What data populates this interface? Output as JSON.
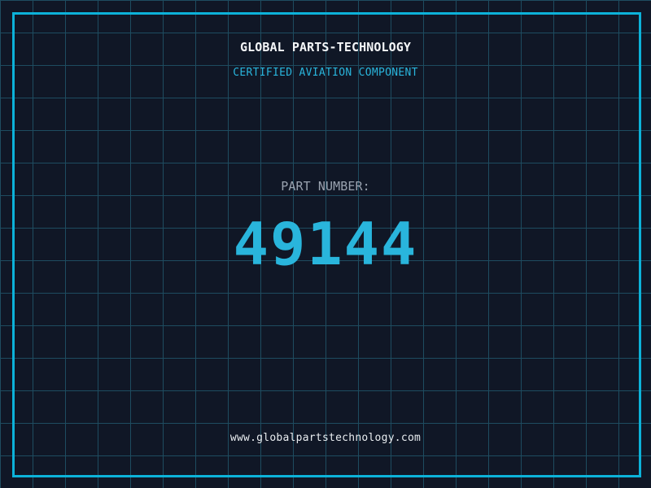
{
  "theme": {
    "background": "#101726",
    "grid_line": "#1e4c60",
    "frame": "#0cb2d9",
    "accent_cyan": "#29b5dc",
    "title_white": "#f4f6f8",
    "label_gray": "#9aa3b0",
    "footer_white": "#e9edf0"
  },
  "header": {
    "title": "GLOBAL PARTS-TECHNOLOGY",
    "subtitle": "CERTIFIED AVIATION COMPONENT"
  },
  "part": {
    "label": "PART NUMBER:",
    "number": "49144"
  },
  "footer": {
    "website": "www.globalpartstechnology.com"
  }
}
